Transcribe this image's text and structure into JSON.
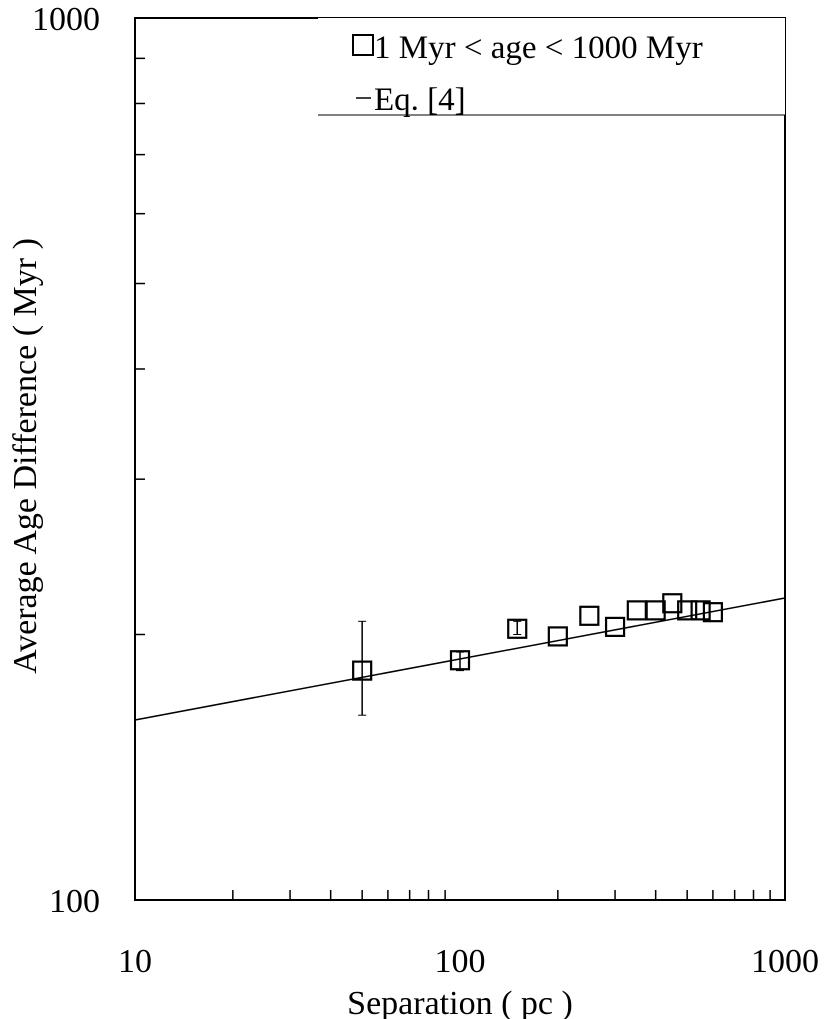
{
  "chart_data": {
    "type": "scatter",
    "title": "",
    "xlabel": "Separation ( pc )",
    "ylabel": "Average Age Difference ( Myr )",
    "x_scale": "log",
    "y_scale": "log",
    "xlim": [
      10,
      1000
    ],
    "ylim": [
      100,
      1000
    ],
    "x_tick_labels": [
      "10",
      "100",
      "1000"
    ],
    "y_tick_labels": [
      "100",
      "1000"
    ],
    "grid": false,
    "legend_position": "top-right",
    "series": [
      {
        "name": "1 Myr < age < 1000 Myr",
        "marker": "open-square",
        "points": [
          {
            "x": 50,
            "y": 182,
            "err_low": 162,
            "err_high": 207
          },
          {
            "x": 100,
            "y": 187,
            "err_low": 182,
            "err_high": 191
          },
          {
            "x": 150,
            "y": 203,
            "err_low": 200,
            "err_high": 207
          },
          {
            "x": 200,
            "y": 199
          },
          {
            "x": 250,
            "y": 210
          },
          {
            "x": 300,
            "y": 204
          },
          {
            "x": 350,
            "y": 213
          },
          {
            "x": 400,
            "y": 213
          },
          {
            "x": 450,
            "y": 217
          },
          {
            "x": 500,
            "y": 213
          },
          {
            "x": 550,
            "y": 213
          },
          {
            "x": 600,
            "y": 212
          }
        ]
      },
      {
        "name": "Eq. [4]",
        "type": "line",
        "x": [
          10,
          1000
        ],
        "y": [
          160,
          220
        ]
      }
    ]
  }
}
